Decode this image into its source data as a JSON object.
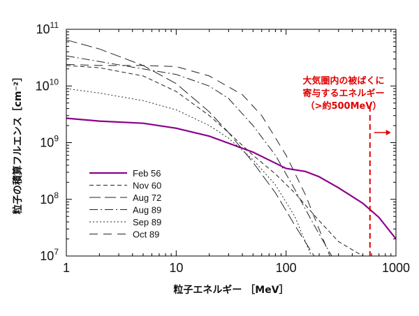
{
  "chart_data": {
    "type": "line",
    "xscale": "log",
    "yscale": "log",
    "xlim": [
      1,
      1000
    ],
    "ylim": [
      10000000.0,
      100000000000.0
    ],
    "xlabel": "粒子エネルギー ［MeV］",
    "ylabel": "粒子の積算フルエンス［cm⁻²］",
    "x_ticks": [
      {
        "value": 1,
        "label": "1"
      },
      {
        "value": 10,
        "label": "10"
      },
      {
        "value": 100,
        "label": "100"
      },
      {
        "value": 1000,
        "label": "1000"
      }
    ],
    "y_ticks": [
      {
        "value": 10000000.0,
        "base": "10",
        "exp": "7"
      },
      {
        "value": 100000000.0,
        "base": "10",
        "exp": "8"
      },
      {
        "value": 1000000000.0,
        "base": "10",
        "exp": "9"
      },
      {
        "value": 10000000000.0,
        "base": "10",
        "exp": "10"
      },
      {
        "value": 100000000000.0,
        "base": "10",
        "exp": "11"
      }
    ],
    "legend_position": "bottom-left",
    "series": [
      {
        "name": "Feb 56",
        "style": "solid",
        "color": "#8b008b",
        "x": [
          1,
          2,
          5,
          10,
          20,
          50,
          100,
          150,
          200,
          300,
          500,
          700,
          1000
        ],
        "y": [
          2700000000.0,
          2400000000.0,
          2200000000.0,
          1800000000.0,
          1300000000.0,
          680000000.0,
          350000000.0,
          310000000.0,
          250000000.0,
          160000000.0,
          85000000.0,
          48000000.0,
          20000000.0
        ]
      },
      {
        "name": "Nov 60",
        "style": "dash",
        "color": "#222222",
        "x": [
          1,
          2,
          5,
          10,
          20,
          30,
          50,
          80,
          120,
          200,
          300,
          500
        ],
        "y": [
          23000000000.0,
          21000000000.0,
          15000000000.0,
          8000000000.0,
          3000000000.0,
          1500000000.0,
          600000000.0,
          280000000.0,
          130000000.0,
          42000000.0,
          18000000.0,
          6000000.0
        ]
      },
      {
        "name": "Aug 72",
        "style": "longdash",
        "color": "#222222",
        "x": [
          1,
          2,
          5,
          10,
          20,
          30,
          50,
          80,
          120,
          180
        ],
        "y": [
          65000000000.0,
          45000000000.0,
          23000000000.0,
          11000000000.0,
          3500000000.0,
          1500000000.0,
          450000000.0,
          130000000.0,
          35000000.0,
          8000000.0
        ]
      },
      {
        "name": "Aug 89",
        "style": "dashdot",
        "color": "#222222",
        "x": [
          1,
          2,
          5,
          10,
          20,
          30,
          50,
          80,
          120,
          180,
          260
        ],
        "y": [
          34000000000.0,
          27000000000.0,
          20000000000.0,
          16000000000.0,
          10000000000.0,
          6000000000.0,
          2000000000.0,
          600000000.0,
          150000000.0,
          35000000.0,
          8000000.0
        ]
      },
      {
        "name": "Sep 89",
        "style": "dot",
        "color": "#222222",
        "x": [
          1,
          2,
          5,
          10,
          20,
          30,
          50,
          80,
          120,
          170
        ],
        "y": [
          9000000000.0,
          7500000000.0,
          5500000000.0,
          3800000000.0,
          2000000000.0,
          1200000000.0,
          500000000.0,
          180000000.0,
          50000000.0,
          10000000.0
        ]
      },
      {
        "name": "Oct 89",
        "style": "longdash2",
        "color": "#222222",
        "x": [
          1,
          2,
          5,
          10,
          20,
          40,
          60,
          100,
          150,
          250
        ],
        "y": [
          24000000000.0,
          23000000000.0,
          23000000000.0,
          22000000000.0,
          15000000000.0,
          7000000000.0,
          3000000000.0,
          600000000.0,
          120000000.0,
          9000000.0
        ]
      }
    ],
    "annotation": {
      "lines": [
        "大気圏内の被ばくに",
        "寄与するエネルギー",
        "（>約500MeV）"
      ],
      "threshold_x": 580,
      "color": "#e00000"
    }
  }
}
